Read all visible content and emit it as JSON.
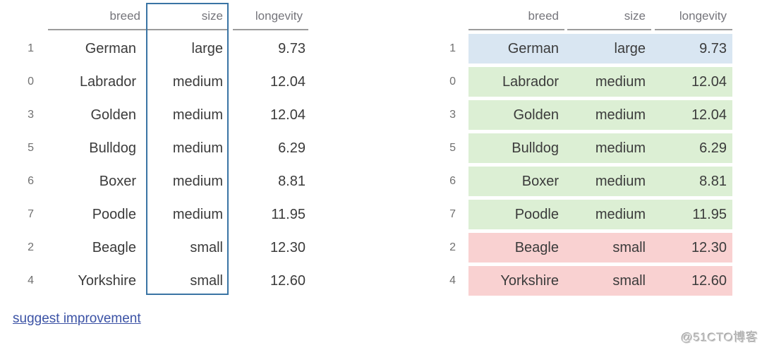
{
  "left_table": {
    "description": "plain dataframe preview with size column highlighted",
    "index_header": "",
    "columns": [
      "breed",
      "size",
      "longevity"
    ],
    "highlighted_column": "size",
    "highlight_border_color": "#3a74a4",
    "rows": [
      {
        "index": "1",
        "breed": "German",
        "size": "large",
        "longevity": "9.73"
      },
      {
        "index": "0",
        "breed": "Labrador",
        "size": "medium",
        "longevity": "12.04"
      },
      {
        "index": "3",
        "breed": "Golden",
        "size": "medium",
        "longevity": "12.04"
      },
      {
        "index": "5",
        "breed": "Bulldog",
        "size": "medium",
        "longevity": "6.29"
      },
      {
        "index": "6",
        "breed": "Boxer",
        "size": "medium",
        "longevity": "8.81"
      },
      {
        "index": "7",
        "breed": "Poodle",
        "size": "medium",
        "longevity": "11.95"
      },
      {
        "index": "2",
        "breed": "Beagle",
        "size": "small",
        "longevity": "12.30"
      },
      {
        "index": "4",
        "breed": "Yorkshire",
        "size": "small",
        "longevity": "12.60"
      }
    ]
  },
  "right_table": {
    "description": "dataframe preview with rows colored by size category",
    "index_header": "",
    "columns": [
      "breed",
      "size",
      "longevity"
    ],
    "row_colors": {
      "large": "#d9e6f2",
      "medium": "#dcefd4",
      "small": "#f9d1d1"
    },
    "rows": [
      {
        "index": "1",
        "breed": "German",
        "size": "large",
        "longevity": "9.73"
      },
      {
        "index": "0",
        "breed": "Labrador",
        "size": "medium",
        "longevity": "12.04"
      },
      {
        "index": "3",
        "breed": "Golden",
        "size": "medium",
        "longevity": "12.04"
      },
      {
        "index": "5",
        "breed": "Bulldog",
        "size": "medium",
        "longevity": "6.29"
      },
      {
        "index": "6",
        "breed": "Boxer",
        "size": "medium",
        "longevity": "8.81"
      },
      {
        "index": "7",
        "breed": "Poodle",
        "size": "medium",
        "longevity": "11.95"
      },
      {
        "index": "2",
        "breed": "Beagle",
        "size": "small",
        "longevity": "12.30"
      },
      {
        "index": "4",
        "breed": "Yorkshire",
        "size": "small",
        "longevity": "12.60"
      }
    ]
  },
  "footer": {
    "suggest_link": "suggest improvement",
    "link_color": "#3b52a5"
  },
  "watermark": {
    "text": "@51CTO博客"
  }
}
